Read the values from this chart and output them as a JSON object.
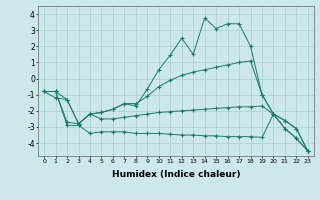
{
  "xlabel": "Humidex (Indice chaleur)",
  "x": [
    0,
    1,
    2,
    3,
    4,
    5,
    6,
    7,
    8,
    9,
    10,
    11,
    12,
    13,
    14,
    15,
    16,
    17,
    18,
    19,
    20,
    21,
    22,
    23
  ],
  "line1": [
    -0.8,
    -1.2,
    -1.3,
    -2.8,
    -2.2,
    -2.1,
    -1.9,
    -1.55,
    -1.7,
    -0.65,
    0.55,
    1.45,
    2.5,
    1.5,
    3.75,
    3.1,
    3.4,
    3.4,
    2.0,
    -1.0,
    -2.2,
    -3.1,
    -3.7,
    -4.5
  ],
  "line2": [
    -0.8,
    -0.8,
    -1.3,
    -2.8,
    -2.2,
    -2.1,
    -1.9,
    -1.55,
    -1.55,
    -1.1,
    -0.5,
    -0.1,
    0.2,
    0.4,
    0.55,
    0.7,
    0.85,
    1.0,
    1.1,
    -1.0,
    -2.2,
    -2.6,
    -3.1,
    -4.5
  ],
  "line3": [
    -0.8,
    -0.8,
    -2.7,
    -2.8,
    -2.2,
    -2.5,
    -2.5,
    -2.4,
    -2.3,
    -2.2,
    -2.1,
    -2.05,
    -2.0,
    -1.95,
    -1.9,
    -1.85,
    -1.8,
    -1.75,
    -1.75,
    -1.7,
    -2.2,
    -2.6,
    -3.1,
    -4.5
  ],
  "line4": [
    -0.8,
    -0.8,
    -2.9,
    -2.9,
    -3.4,
    -3.3,
    -3.3,
    -3.3,
    -3.4,
    -3.4,
    -3.4,
    -3.45,
    -3.5,
    -3.5,
    -3.55,
    -3.55,
    -3.6,
    -3.6,
    -3.6,
    -3.65,
    -2.2,
    -3.1,
    -3.7,
    -4.5
  ],
  "color": "#1a7a6a",
  "bg_color": "#cce8ea",
  "grid_color": "#aacdd0",
  "ylim": [
    -4.8,
    4.5
  ],
  "yticks": [
    -4,
    -3,
    -2,
    -1,
    0,
    1,
    2,
    3,
    4
  ],
  "xticks": [
    0,
    1,
    2,
    3,
    4,
    5,
    6,
    7,
    8,
    9,
    10,
    11,
    12,
    13,
    14,
    15,
    16,
    17,
    18,
    19,
    20,
    21,
    22,
    23
  ],
  "figsize": [
    3.2,
    2.0
  ],
  "dpi": 100
}
